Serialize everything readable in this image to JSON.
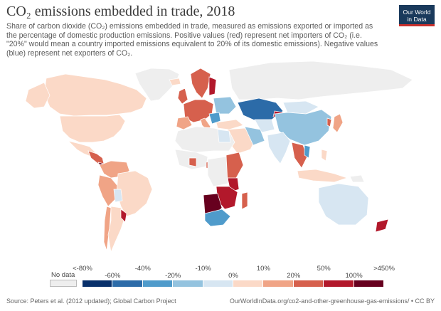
{
  "header": {
    "title": "CO₂ emissions embedded in trade, 2018",
    "subtitle": "Share of carbon dioxide (CO₂) emissions embedded in trade, measured as emissions exported or imported as the percentage of domestic production emissions. Positive values (red) represent net importers of CO₂ (i.e. \"20%\" would mean a country imported emissions equivalent to 20% of its domestic emissions). Negative values (blue) represent net exporters of CO₂."
  },
  "logo": {
    "line1": "Our World",
    "line2": "in Data"
  },
  "legend": {
    "no_data_label": "No data",
    "upper_labels": [
      "<-80%",
      "-40%",
      "-10%",
      "10%",
      "50%",
      ">450%"
    ],
    "lower_labels": [
      "-60%",
      "-20%",
      "0%",
      "20%",
      "100%"
    ],
    "colors": [
      "#08306b",
      "#2c6ba8",
      "#4f9bcb",
      "#94c3df",
      "#d7e6f2",
      "#fbd9c7",
      "#f0a486",
      "#d6604d",
      "#b2182b",
      "#67001f"
    ]
  },
  "colors": {
    "no_data": "#eeeeee",
    "border": "#ffffff"
  },
  "footer": {
    "source": "Source: Peters et al. (2012 updated); Global Carbon Project",
    "url": "OurWorldInData.org/co2-and-other-greenhouse-gas-emissions/ • CC BY"
  }
}
